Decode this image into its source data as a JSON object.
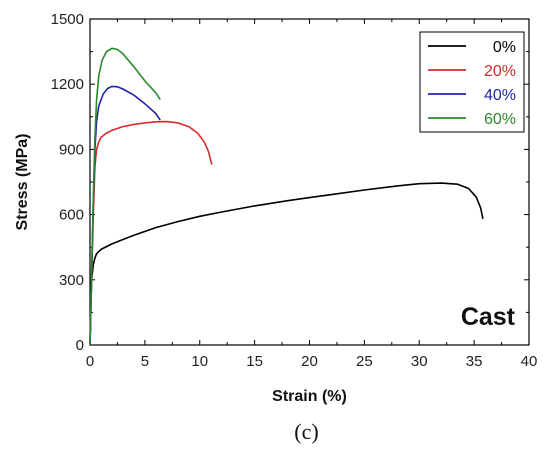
{
  "chart_data": {
    "type": "line",
    "xlabel": "Strain (%)",
    "ylabel": "Stress (MPa)",
    "xlim": [
      0,
      40
    ],
    "ylim": [
      0,
      1500
    ],
    "xticks": [
      0,
      5,
      10,
      15,
      20,
      25,
      30,
      35,
      40
    ],
    "yticks": [
      0,
      300,
      600,
      900,
      1200,
      1500
    ],
    "grid": false,
    "legend_position": "top-right",
    "annotation": "Cast",
    "panel_label": "(c)",
    "series": [
      {
        "name": "0%",
        "color": "#000000",
        "x": [
          0,
          0.15,
          0.3,
          0.45,
          0.6,
          1,
          2,
          4,
          6,
          8,
          10,
          12,
          15,
          18,
          20,
          22,
          25,
          28,
          30,
          32,
          33.5,
          34.5,
          35.2,
          35.6,
          35.8
        ],
        "y": [
          0,
          300,
          370,
          400,
          420,
          440,
          465,
          505,
          540,
          568,
          592,
          612,
          640,
          664,
          678,
          692,
          713,
          732,
          742,
          745,
          740,
          720,
          680,
          630,
          580
        ]
      },
      {
        "name": "20%",
        "color": "#d42a2a",
        "x": [
          0,
          0.15,
          0.3,
          0.45,
          0.6,
          0.8,
          1,
          1.5,
          2,
          3,
          4,
          5,
          6,
          7,
          8,
          9,
          9.8,
          10.4,
          10.8,
          11.1
        ],
        "y": [
          0,
          300,
          600,
          820,
          900,
          935,
          955,
          975,
          988,
          1005,
          1015,
          1022,
          1027,
          1028,
          1022,
          1005,
          975,
          935,
          890,
          830
        ]
      },
      {
        "name": "40%",
        "color": "#1f25a8",
        "x": [
          0,
          0.15,
          0.3,
          0.45,
          0.6,
          0.8,
          1.2,
          1.6,
          2,
          2.5,
          3,
          4,
          5,
          6,
          6.4
        ],
        "y": [
          0,
          320,
          650,
          900,
          1030,
          1100,
          1155,
          1180,
          1190,
          1188,
          1178,
          1150,
          1110,
          1065,
          1035
        ]
      },
      {
        "name": "60%",
        "color": "#2a8a2a",
        "x": [
          0,
          0.15,
          0.3,
          0.45,
          0.6,
          0.8,
          1.1,
          1.5,
          2,
          2.5,
          3,
          3.5,
          4,
          5,
          6,
          6.4
        ],
        "y": [
          0,
          330,
          680,
          950,
          1130,
          1240,
          1310,
          1350,
          1365,
          1360,
          1340,
          1310,
          1280,
          1215,
          1160,
          1130
        ]
      }
    ]
  }
}
